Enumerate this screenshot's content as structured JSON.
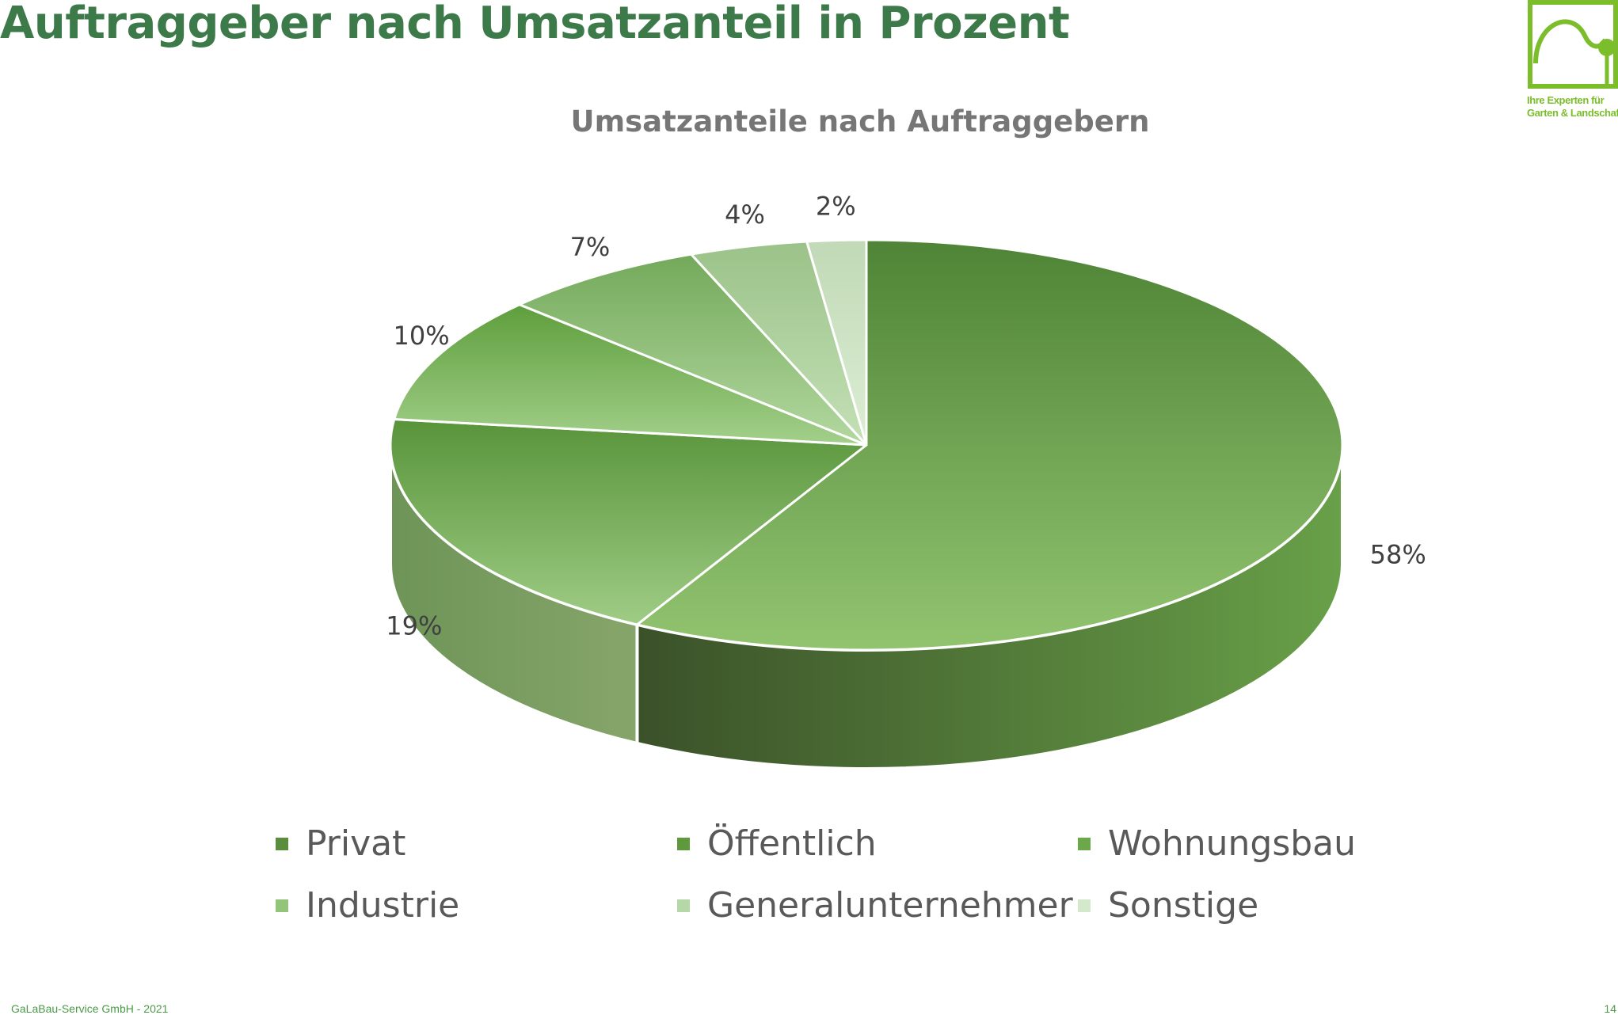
{
  "slide": {
    "title": "Auftraggeber nach Umsatzanteil in Prozent",
    "footer": "GaLaBau-Service GmbH  -  2021",
    "page_number": "14"
  },
  "logo": {
    "line1": "Ihre Experten für",
    "line2": "Garten & Landschaft",
    "color": "#7bbd2b"
  },
  "colors": {
    "title": "#3d7a4a",
    "chart_title": "#767676",
    "labels": "#404040",
    "legend_text": "#595959",
    "footer": "#4a9a47"
  },
  "chart_data": {
    "type": "pie",
    "title": "Umsatzanteile nach Auftraggebern",
    "three_d": true,
    "legend_position": "bottom",
    "series": [
      {
        "name": "Privat",
        "value": 58,
        "label": "58%",
        "colors": [
          "#4f8436",
          "#92c470"
        ],
        "side": [
          "#68a048",
          "#3b5129"
        ]
      },
      {
        "name": "Öffentlich",
        "value": 19,
        "label": "19%",
        "colors": [
          "#58943a",
          "#9fcc85"
        ],
        "side": [
          "#86a56a",
          "#6e9458"
        ]
      },
      {
        "name": "Wohnungsbau",
        "value": 10,
        "label": "10%",
        "colors": [
          "#5e9e3c",
          "#a3d08b"
        ],
        "side": [
          "#6e9458",
          "#6e9458"
        ]
      },
      {
        "name": "Industrie",
        "value": 7,
        "label": "7%",
        "colors": [
          "#73a95a",
          "#b3d8a0"
        ],
        "side": [
          "#7da665",
          "#7da665"
        ]
      },
      {
        "name": "Generalunternehmer",
        "value": 4,
        "label": "4%",
        "colors": [
          "#9bc289",
          "#c4e0b6"
        ],
        "side": [
          "#9dbb8c",
          "#9dbb8c"
        ]
      },
      {
        "name": "Sonstige",
        "value": 2,
        "label": "2%",
        "colors": [
          "#c1d9b6",
          "#dceed4"
        ],
        "side": [
          "#bfd3b5",
          "#bfd3b5"
        ]
      }
    ],
    "legend_swatches": [
      "#5a8e3c",
      "#5e9a3c",
      "#6aa84a",
      "#93c47a",
      "#b6d7a8",
      "#d4e8cb"
    ]
  }
}
